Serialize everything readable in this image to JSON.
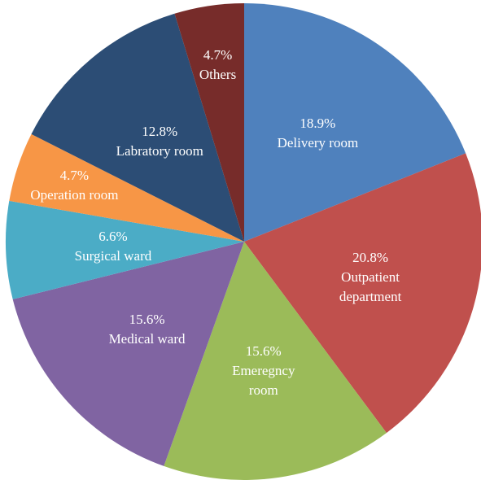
{
  "chart_data": {
    "type": "pie",
    "categories": [
      "Delivery room",
      "Outpatient department",
      "Emeregncy room",
      "Medical ward",
      "Surgical ward",
      "Operation room",
      "Labratory room",
      "Others"
    ],
    "values": [
      18.9,
      20.8,
      15.6,
      15.6,
      6.6,
      4.7,
      12.8,
      4.7
    ],
    "value_labels": [
      "18.9%",
      "20.8%",
      "15.6%",
      "15.6%",
      "6.6%",
      "4.7%",
      "12.8%",
      "4.7%"
    ],
    "colors": [
      "#4f81bd",
      "#c0504d",
      "#9bbb59",
      "#8064a2",
      "#4bacc6",
      "#f79646",
      "#2c4d75",
      "#772c2a"
    ]
  }
}
